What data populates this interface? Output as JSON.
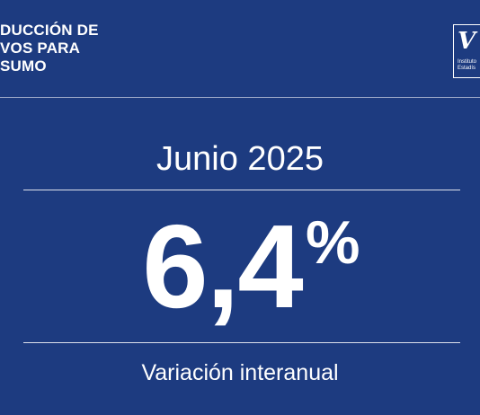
{
  "header": {
    "title_lines": [
      "DUCCIÓN DE",
      "VOS PARA",
      "SUMO"
    ]
  },
  "logo": {
    "mark": "V",
    "text_lines": [
      "Instituto",
      "Estadís"
    ]
  },
  "main": {
    "period": "Junio 2025",
    "value": "6,4",
    "unit": "%",
    "subtitle": "Variación interanual"
  },
  "colors": {
    "background": "#1d3b80",
    "foreground": "#ffffff"
  }
}
